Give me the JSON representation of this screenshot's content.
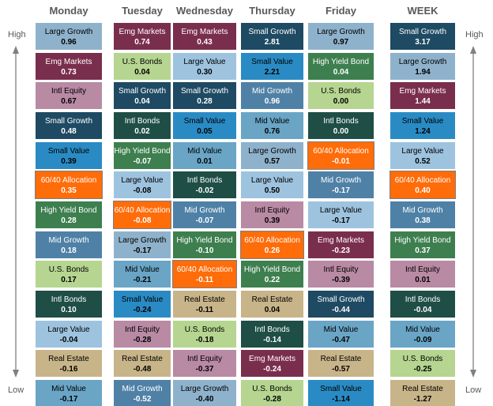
{
  "side_labels": {
    "top": "High",
    "bottom": "Low"
  },
  "colors": {
    "Large Growth": {
      "bg": "#8fb2cc",
      "fg": "#000000"
    },
    "Emg Markets": {
      "bg": "#7a2e4d",
      "fg": "#ffffff"
    },
    "Small Growth": {
      "bg": "#1e4a63",
      "fg": "#ffffff"
    },
    "U.S. Bonds": {
      "bg": "#b5d590",
      "fg": "#000000"
    },
    "Large Value": {
      "bg": "#9ec3df",
      "fg": "#000000"
    },
    "Small Value": {
      "bg": "#2a8bc4",
      "fg": "#000000"
    },
    "High Yield Bond": {
      "bg": "#3e7f4f",
      "fg": "#ffffff"
    },
    "Intl Equity": {
      "bg": "#b98aa3",
      "fg": "#000000"
    },
    "Mid Growth": {
      "bg": "#4f81a6",
      "fg": "#ffffff"
    },
    "Intl Bonds": {
      "bg": "#1f4e46",
      "fg": "#ffffff"
    },
    "Mid Value": {
      "bg": "#6aa5c6",
      "fg": "#000000"
    },
    "60/40 Allocation": {
      "bg": "#ff6c0a",
      "fg": "#ffffff"
    },
    "Real Estate": {
      "bg": "#c8b489",
      "fg": "#000000"
    }
  },
  "highlight": "60/40 Allocation",
  "chart_data": {
    "type": "table",
    "columns": [
      {
        "label": "Monday",
        "cells": [
          {
            "name": "Large Growth",
            "value": "0.96"
          },
          {
            "name": "Emg Markets",
            "value": "0.73"
          },
          {
            "name": "Intl Equity",
            "value": "0.67"
          },
          {
            "name": "Small Growth",
            "value": "0.48"
          },
          {
            "name": "Small Value",
            "value": "0.39"
          },
          {
            "name": "60/40 Allocation",
            "value": "0.35"
          },
          {
            "name": "High Yield Bond",
            "value": "0.28"
          },
          {
            "name": "Mid Growth",
            "value": "0.18"
          },
          {
            "name": "U.S. Bonds",
            "value": "0.17"
          },
          {
            "name": "Intl Bonds",
            "value": "0.10"
          },
          {
            "name": "Large Value",
            "value": "-0.04"
          },
          {
            "name": "Real Estate",
            "value": "-0.16"
          },
          {
            "name": "Mid Value",
            "value": "-0.17"
          }
        ]
      },
      {
        "label": "Tuesday",
        "cells": [
          {
            "name": "Emg Markets",
            "value": "0.74"
          },
          {
            "name": "U.S. Bonds",
            "value": "0.04"
          },
          {
            "name": "Small Growth",
            "value": "0.04"
          },
          {
            "name": "Intl Bonds",
            "value": "0.02"
          },
          {
            "name": "High Yield Bond",
            "value": "-0.07"
          },
          {
            "name": "Large Value",
            "value": "-0.08"
          },
          {
            "name": "60/40 Allocation",
            "value": "-0.08"
          },
          {
            "name": "Large Growth",
            "value": "-0.17"
          },
          {
            "name": "Mid Value",
            "value": "-0.21"
          },
          {
            "name": "Small Value",
            "value": "-0.24"
          },
          {
            "name": "Intl Equity",
            "value": "-0.28"
          },
          {
            "name": "Real Estate",
            "value": "-0.48"
          },
          {
            "name": "Mid Growth",
            "value": "-0.52"
          }
        ]
      },
      {
        "label": "Wednesday",
        "cells": [
          {
            "name": "Emg Markets",
            "value": "0.43"
          },
          {
            "name": "Large Value",
            "value": "0.30"
          },
          {
            "name": "Small Growth",
            "value": "0.28"
          },
          {
            "name": "Small Value",
            "value": "0.05"
          },
          {
            "name": "Mid Value",
            "value": "0.01"
          },
          {
            "name": "Intl Bonds",
            "value": "-0.02"
          },
          {
            "name": "Mid Growth",
            "value": "-0.07"
          },
          {
            "name": "High Yield Bond",
            "value": "-0.10"
          },
          {
            "name": "60/40 Allocation",
            "value": "-0.11"
          },
          {
            "name": "Real Estate",
            "value": "-0.11"
          },
          {
            "name": "U.S. Bonds",
            "value": "-0.18"
          },
          {
            "name": "Intl Equity",
            "value": "-0.37"
          },
          {
            "name": "Large Growth",
            "value": "-0.40"
          }
        ]
      },
      {
        "label": "Thursday",
        "cells": [
          {
            "name": "Small Growth",
            "value": "2.81"
          },
          {
            "name": "Small Value",
            "value": "2.21"
          },
          {
            "name": "Mid Growth",
            "value": "0.96"
          },
          {
            "name": "Mid Value",
            "value": "0.76"
          },
          {
            "name": "Large Growth",
            "value": "0.57"
          },
          {
            "name": "Large Value",
            "value": "0.50"
          },
          {
            "name": "Intl Equity",
            "value": "0.39"
          },
          {
            "name": "60/40 Allocation",
            "value": "0.26"
          },
          {
            "name": "High Yield Bond",
            "value": "0.22"
          },
          {
            "name": "Real Estate",
            "value": "0.04"
          },
          {
            "name": "Intl Bonds",
            "value": "-0.14"
          },
          {
            "name": "Emg Markets",
            "value": "-0.24"
          },
          {
            "name": "U.S. Bonds",
            "value": "-0.28"
          }
        ]
      },
      {
        "label": "Friday",
        "cells": [
          {
            "name": "Large Growth",
            "value": "0.97"
          },
          {
            "name": "High Yield Bond",
            "value": "0.04"
          },
          {
            "name": "U.S. Bonds",
            "value": "0.00"
          },
          {
            "name": "Intl Bonds",
            "value": "0.00"
          },
          {
            "name": "60/40 Allocation",
            "value": "-0.01"
          },
          {
            "name": "Mid Growth",
            "value": "-0.17"
          },
          {
            "name": "Large Value",
            "value": "-0.17"
          },
          {
            "name": "Emg Markets",
            "value": "-0.23"
          },
          {
            "name": "Intl Equity",
            "value": "-0.39"
          },
          {
            "name": "Small Growth",
            "value": "-0.44"
          },
          {
            "name": "Mid Value",
            "value": "-0.47"
          },
          {
            "name": "Real Estate",
            "value": "-0.57"
          },
          {
            "name": "Small Value",
            "value": "-1.14"
          }
        ]
      },
      {
        "label": "WEEK",
        "cells": [
          {
            "name": "Small Growth",
            "value": "3.17"
          },
          {
            "name": "Large Growth",
            "value": "1.94"
          },
          {
            "name": "Emg Markets",
            "value": "1.44"
          },
          {
            "name": "Small Value",
            "value": "1.24"
          },
          {
            "name": "Large Value",
            "value": "0.52"
          },
          {
            "name": "60/40 Allocation",
            "value": "0.40"
          },
          {
            "name": "Mid Growth",
            "value": "0.38"
          },
          {
            "name": "High Yield Bond",
            "value": "0.37"
          },
          {
            "name": "Intl Equity",
            "value": "0.01"
          },
          {
            "name": "Intl Bonds",
            "value": "-0.04"
          },
          {
            "name": "Mid Value",
            "value": "-0.09"
          },
          {
            "name": "U.S. Bonds",
            "value": "-0.25"
          },
          {
            "name": "Real Estate",
            "value": "-1.27"
          }
        ]
      }
    ]
  }
}
